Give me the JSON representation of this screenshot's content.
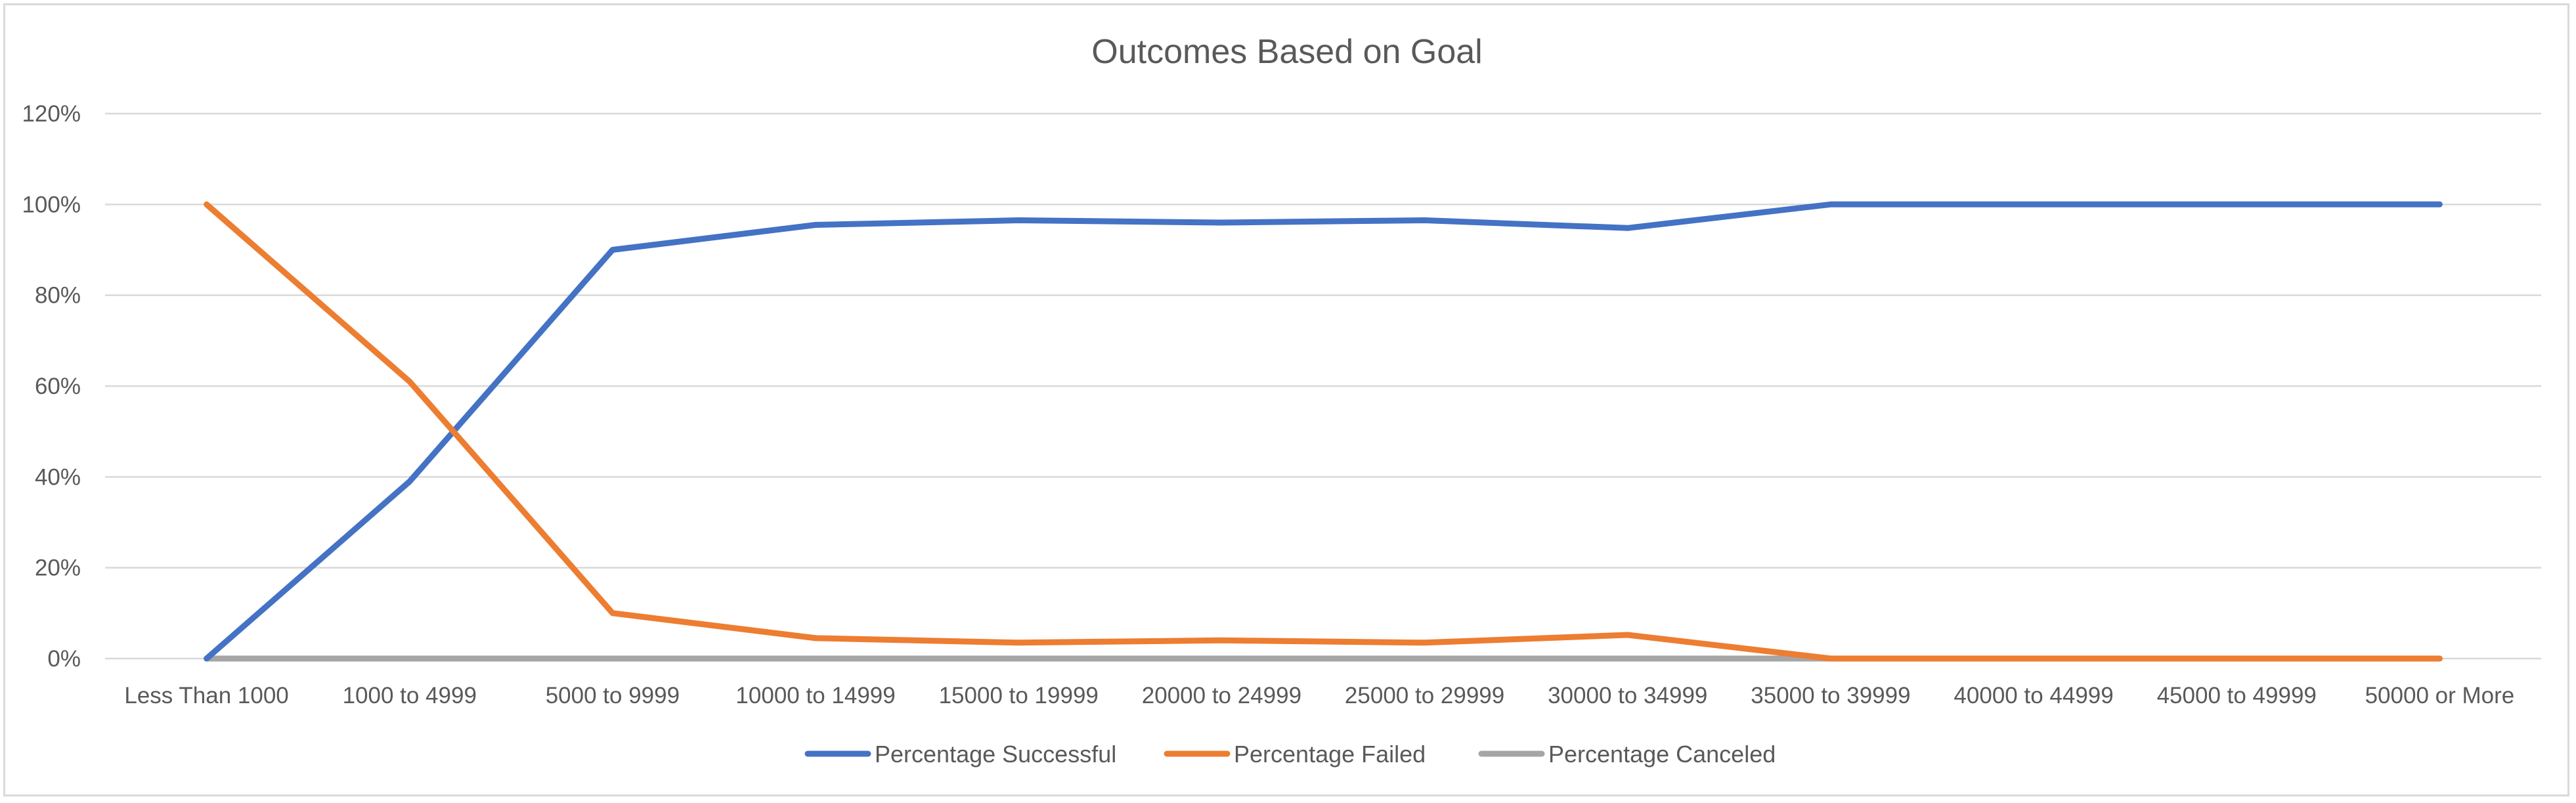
{
  "chart_data": {
    "type": "line",
    "title": "Outcomes Based on Goal",
    "xlabel": "",
    "ylabel": "",
    "categories": [
      "Less Than 1000",
      "1000 to 4999",
      "5000 to 9999",
      "10000 to 14999",
      "15000 to 19999",
      "20000 to 24999",
      "25000 to 29999",
      "30000 to 34999",
      "35000 to 39999",
      "40000 to 44999",
      "45000 to 49999",
      "50000 or More"
    ],
    "y_ticks": [
      "0%",
      "20%",
      "40%",
      "60%",
      "80%",
      "100%",
      "120%"
    ],
    "ylim": [
      0,
      1.2
    ],
    "grid": true,
    "legend_position": "bottom",
    "series": [
      {
        "name": "Percentage Successful",
        "color": "#4472c4",
        "values": [
          0,
          0.39,
          0.9,
          0.955,
          0.965,
          0.96,
          0.965,
          0.948,
          1.0,
          1.0,
          1.0,
          1.0
        ]
      },
      {
        "name": "Percentage Failed",
        "color": "#ed7d31",
        "values": [
          1.0,
          0.61,
          0.1,
          0.045,
          0.035,
          0.04,
          0.035,
          0.052,
          0,
          0,
          0,
          0
        ]
      },
      {
        "name": "Percentage Canceled",
        "color": "#a5a5a5",
        "values": [
          0,
          0,
          0,
          0,
          0,
          0,
          0,
          0,
          0,
          0,
          0,
          0
        ]
      }
    ]
  }
}
